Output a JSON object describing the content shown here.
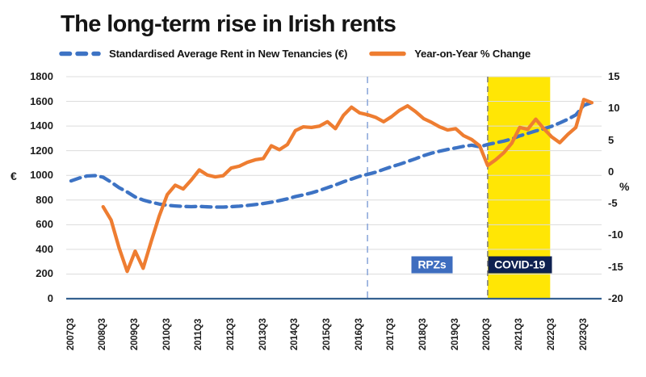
{
  "title": "The long-term rise in Irish rents",
  "legend": [
    {
      "label": "Standardised Average Rent in New Tenancies (€)"
    },
    {
      "label": "Year-on-Year % Change"
    }
  ],
  "colors": {
    "rent_series": "#3D73C4",
    "yoy_series": "#EE7D31",
    "grid": "#DCDCDC",
    "axis_line": "#35618F",
    "covid_band": "#FFE605",
    "rpz_divider": "#8EA9DB",
    "covid_divider": "#7F7F7F",
    "rpz_box": "#3E6DBF",
    "covid_box": "#0E2050",
    "text": "#1c1c1c"
  },
  "chart_data": {
    "type": "line",
    "title": "The long-term rise in Irish rents",
    "grid": true,
    "legend_position": "top",
    "left_axis": {
      "unit": "€",
      "min": 0,
      "max": 1800,
      "step": 200
    },
    "right_axis": {
      "unit": "%",
      "min": -20,
      "max": 15,
      "step": 5
    },
    "x_ticks": [
      "2007Q3",
      "2008Q3",
      "2009Q3",
      "2010Q3",
      "2011Q3",
      "2012Q3",
      "2013Q3",
      "2014Q3",
      "2015Q3",
      "2016Q3",
      "2017Q3",
      "2018Q3",
      "2019Q3",
      "2020Q3",
      "2021Q3",
      "2022Q3",
      "2023Q3"
    ],
    "quarters": [
      "2007Q3",
      "2007Q4",
      "2008Q1",
      "2008Q2",
      "2008Q3",
      "2008Q4",
      "2009Q1",
      "2009Q2",
      "2009Q3",
      "2009Q4",
      "2010Q1",
      "2010Q2",
      "2010Q3",
      "2010Q4",
      "2011Q1",
      "2011Q2",
      "2011Q3",
      "2011Q4",
      "2012Q1",
      "2012Q2",
      "2012Q3",
      "2012Q4",
      "2013Q1",
      "2013Q2",
      "2013Q3",
      "2013Q4",
      "2014Q1",
      "2014Q2",
      "2014Q3",
      "2014Q4",
      "2015Q1",
      "2015Q2",
      "2015Q3",
      "2015Q4",
      "2016Q1",
      "2016Q2",
      "2016Q3",
      "2016Q4",
      "2017Q1",
      "2017Q2",
      "2017Q3",
      "2017Q4",
      "2018Q1",
      "2018Q2",
      "2018Q3",
      "2018Q4",
      "2019Q1",
      "2019Q2",
      "2019Q3",
      "2019Q4",
      "2020Q1",
      "2020Q2",
      "2020Q3",
      "2020Q4",
      "2021Q1",
      "2021Q2",
      "2021Q3",
      "2021Q4",
      "2022Q1",
      "2022Q2",
      "2022Q3",
      "2022Q4",
      "2023Q1",
      "2023Q2",
      "2023Q3",
      "2023Q4"
    ],
    "series": [
      {
        "name": "Standardised Average Rent in New Tenancies (€)",
        "axis": "left",
        "style": "dashed",
        "color": "#3D73C4",
        "start_quarter": "2007Q3",
        "values": [
          955,
          978,
          995,
          998,
          985,
          945,
          900,
          865,
          825,
          800,
          782,
          768,
          757,
          752,
          748,
          746,
          748,
          745,
          743,
          743,
          746,
          750,
          756,
          763,
          772,
          782,
          795,
          810,
          828,
          842,
          858,
          878,
          900,
          922,
          948,
          970,
          992,
          1008,
          1025,
          1048,
          1070,
          1090,
          1112,
          1135,
          1160,
          1180,
          1196,
          1210,
          1222,
          1236,
          1244,
          1232,
          1250,
          1264,
          1278,
          1295,
          1320,
          1340,
          1360,
          1378,
          1398,
          1425,
          1455,
          1490,
          1568,
          1590
        ]
      },
      {
        "name": "Year-on-Year % Change",
        "axis": "right",
        "style": "solid",
        "color": "#EE7D31",
        "start_quarter": "2008Q3",
        "values": [
          -5.5,
          -7.6,
          -12.0,
          -15.7,
          -12.5,
          -15.2,
          -11.0,
          -7.0,
          -3.6,
          -2.1,
          -2.7,
          -1.3,
          0.3,
          -0.5,
          -0.8,
          -0.6,
          0.6,
          0.9,
          1.5,
          1.9,
          2.1,
          4.1,
          3.5,
          4.3,
          6.5,
          7.1,
          7.0,
          7.2,
          7.9,
          6.8,
          8.9,
          10.2,
          9.3,
          9.0,
          8.6,
          7.9,
          8.7,
          9.7,
          10.4,
          9.5,
          8.4,
          7.8,
          7.1,
          6.6,
          6.8,
          5.7,
          5.1,
          4.1,
          1.0,
          1.9,
          3.0,
          4.5,
          7.0,
          6.7,
          8.3,
          6.8,
          5.5,
          4.6,
          5.9,
          7.0,
          11.4,
          10.9
        ]
      }
    ],
    "annotations": {
      "rpz": {
        "label": "RPZs",
        "line_quarter": "2016Q4"
      },
      "covid": {
        "label": "COVID-19",
        "band_start": "2020Q3",
        "band_end": "2022Q3"
      }
    }
  }
}
